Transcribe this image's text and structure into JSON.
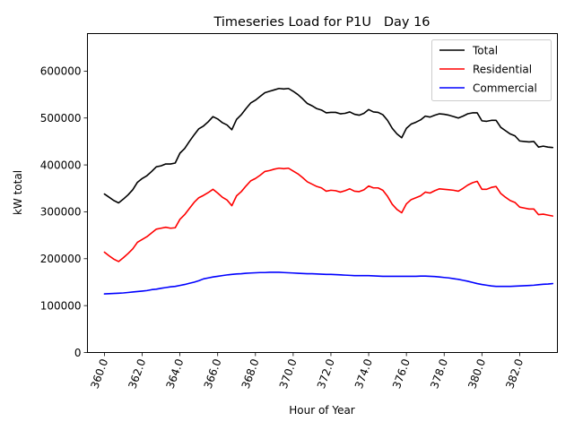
{
  "chart_data": {
    "type": "line",
    "title": "Timeseries Load for P1U   Day 16",
    "xlabel": "Hour of Year",
    "ylabel": "kW total",
    "xlim": [
      359.1,
      384.0
    ],
    "ylim": [
      0,
      680000
    ],
    "xticks": [
      360,
      362,
      364,
      366,
      368,
      370,
      372,
      374,
      376,
      378,
      380,
      382
    ],
    "xtick_labels": [
      "360.0",
      "362.0",
      "364.0",
      "366.0",
      "368.0",
      "370.0",
      "372.0",
      "374.0",
      "376.0",
      "378.0",
      "380.0",
      "382.0"
    ],
    "yticks": [
      0,
      100000,
      200000,
      300000,
      400000,
      500000,
      600000
    ],
    "ytick_labels": [
      "0",
      "100000",
      "200000",
      "300000",
      "400000",
      "500000",
      "600000"
    ],
    "legend_position": "top-right",
    "grid": false,
    "x_start": 360.0,
    "x_step": 0.25,
    "series": [
      {
        "name": "Total",
        "color": "#000000",
        "values": [
          338000,
          331000,
          324000,
          319000,
          327000,
          336000,
          347000,
          363000,
          371000,
          377000,
          386000,
          396000,
          398000,
          402000,
          402000,
          404000,
          425000,
          435000,
          450000,
          464000,
          477000,
          483000,
          492000,
          503000,
          498000,
          490000,
          485000,
          475000,
          497000,
          507000,
          520000,
          532000,
          538000,
          546000,
          554000,
          557000,
          560000,
          563000,
          562000,
          563000,
          557000,
          550000,
          541000,
          531000,
          526000,
          520000,
          517000,
          511000,
          512000,
          512000,
          509000,
          510000,
          513000,
          508000,
          506000,
          510000,
          518000,
          513000,
          512000,
          507000,
          495000,
          478000,
          466000,
          458000,
          478000,
          487000,
          491000,
          496000,
          504000,
          502000,
          506000,
          509000,
          508000,
          506000,
          503000,
          500000,
          504000,
          509000,
          511000,
          511000,
          494000,
          493000,
          495000,
          495000,
          480000,
          473000,
          466000,
          462000,
          451000,
          450000,
          449000,
          450000,
          438000,
          440000,
          438000,
          437000
        ]
      },
      {
        "name": "Residential",
        "color": "#ff0000",
        "values": [
          214000,
          206000,
          199000,
          194000,
          202000,
          211000,
          221000,
          235000,
          241000,
          247000,
          255000,
          263000,
          265000,
          267000,
          265000,
          266000,
          284000,
          294000,
          307000,
          320000,
          330000,
          335000,
          341000,
          348000,
          340000,
          331000,
          325000,
          313000,
          334000,
          343000,
          355000,
          366000,
          371000,
          378000,
          386000,
          388000,
          391000,
          393000,
          392000,
          393000,
          387000,
          381000,
          373000,
          364000,
          359000,
          354000,
          351000,
          344000,
          346000,
          345000,
          342000,
          345000,
          349000,
          344000,
          343000,
          347000,
          355000,
          351000,
          351000,
          346000,
          333000,
          316000,
          305000,
          298000,
          317000,
          326000,
          330000,
          334000,
          342000,
          340000,
          345000,
          349000,
          348000,
          347000,
          346000,
          344000,
          350000,
          357000,
          362000,
          365000,
          348000,
          348000,
          352000,
          354000,
          339000,
          331000,
          324000,
          320000,
          310000,
          308000,
          306000,
          306000,
          294000,
          295000,
          293000,
          291000
        ]
      },
      {
        "name": "Commercial",
        "color": "#0000ff",
        "values": [
          125000,
          125500,
          126000,
          126500,
          127000,
          128000,
          129000,
          130000,
          131000,
          132000,
          134000,
          135000,
          137000,
          138500,
          140000,
          141000,
          143000,
          145000,
          147500,
          150000,
          153000,
          157000,
          159000,
          161000,
          162500,
          164000,
          165500,
          166500,
          167500,
          168000,
          169000,
          169500,
          170000,
          170500,
          170500,
          171000,
          171000,
          171000,
          170500,
          170000,
          169500,
          169000,
          168500,
          168000,
          168000,
          167500,
          167000,
          166500,
          166500,
          166000,
          165500,
          165000,
          164500,
          164000,
          164000,
          164000,
          164000,
          163500,
          163000,
          162500,
          162500,
          162500,
          162500,
          162500,
          162500,
          162500,
          162500,
          163000,
          163000,
          162500,
          162000,
          161000,
          160000,
          159000,
          157500,
          156000,
          154000,
          152000,
          149500,
          147000,
          145000,
          143500,
          142000,
          141000,
          141000,
          141000,
          141000,
          141500,
          142000,
          142500,
          143000,
          143500,
          144500,
          145500,
          146000,
          147000
        ]
      }
    ]
  }
}
